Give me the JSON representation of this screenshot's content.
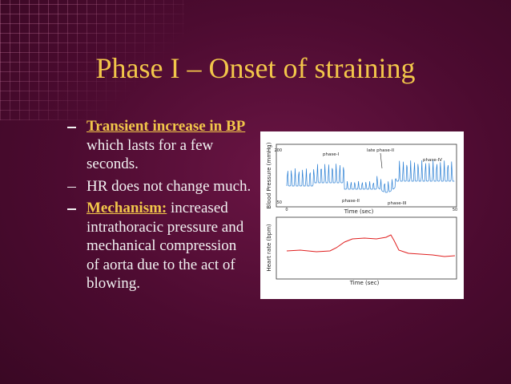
{
  "title": "Phase I – Onset of straining",
  "bullets": [
    {
      "emphasis": "Transient increase in BP",
      "text": "which lasts for a few seconds."
    },
    {
      "text": "HR does not change much."
    },
    {
      "emphasis": "Mechanism:",
      "text": "increased intrathoracic pressure and mechanical compression of aorta due to the act of blowing."
    }
  ],
  "figure": {
    "bp": {
      "y_label": "Blood Pressure (mmHg)",
      "yticks": [
        "200",
        "50"
      ],
      "xticks": [
        "0",
        "50"
      ],
      "x_label": "Time (sec)",
      "annotations": [
        "phase-I",
        "late phase-II",
        "phase-IV",
        "phase-II",
        "phase-III"
      ]
    },
    "hr": {
      "y_label": "Heart rate (bpm)",
      "x_label": "Time (sec)"
    }
  }
}
